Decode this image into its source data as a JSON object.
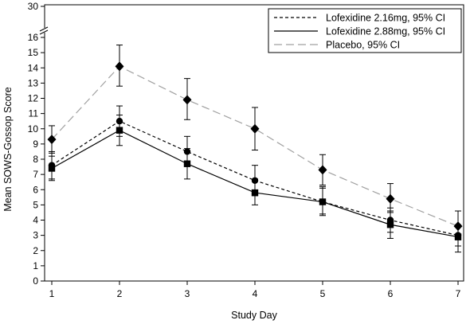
{
  "chart_data": {
    "type": "line",
    "xlabel": "Study Day",
    "ylabel": "Mean SOWS-Gossop Score",
    "x": [
      1,
      2,
      3,
      4,
      5,
      6,
      7
    ],
    "xlim": [
      1,
      7
    ],
    "ylim": [
      0,
      16
    ],
    "yticks": [
      0,
      1,
      2,
      3,
      4,
      5,
      6,
      7,
      8,
      9,
      10,
      11,
      12,
      13,
      14,
      15,
      16
    ],
    "ybreak": {
      "from": 16,
      "to": 30,
      "upper_tick": 30
    },
    "grid": false,
    "legend_position": "top-right",
    "series": [
      {
        "name": "Lofexidine 2.16mg, 95% CI",
        "line_style": "short-dash",
        "marker": "circle",
        "color": "#000000",
        "values": [
          7.6,
          10.5,
          8.5,
          6.6,
          5.2,
          4.0,
          3.0
        ],
        "ci_low": [
          6.7,
          9.5,
          7.6,
          5.6,
          4.4,
          3.2,
          2.3
        ],
        "ci_high": [
          8.5,
          11.5,
          9.5,
          7.6,
          6.2,
          4.8,
          3.7
        ]
      },
      {
        "name": "Lofexidine 2.88mg, 95% CI",
        "line_style": "solid",
        "marker": "square",
        "color": "#000000",
        "values": [
          7.4,
          9.9,
          7.7,
          5.8,
          5.2,
          3.7,
          2.9
        ],
        "ci_low": [
          6.6,
          8.9,
          6.7,
          5.0,
          4.3,
          2.8,
          1.9
        ],
        "ci_high": [
          8.2,
          10.9,
          8.7,
          6.7,
          6.1,
          4.6,
          3.6
        ]
      },
      {
        "name": "Placebo, 95% CI",
        "line_style": "long-dash",
        "marker": "diamond",
        "color": "#a0a0a0",
        "values": [
          9.3,
          14.1,
          11.9,
          10.0,
          7.3,
          5.4,
          3.6
        ],
        "ci_low": [
          8.4,
          12.8,
          10.6,
          8.6,
          6.3,
          4.5,
          2.7
        ],
        "ci_high": [
          10.2,
          15.5,
          13.3,
          11.4,
          8.3,
          6.4,
          4.6
        ]
      }
    ]
  }
}
